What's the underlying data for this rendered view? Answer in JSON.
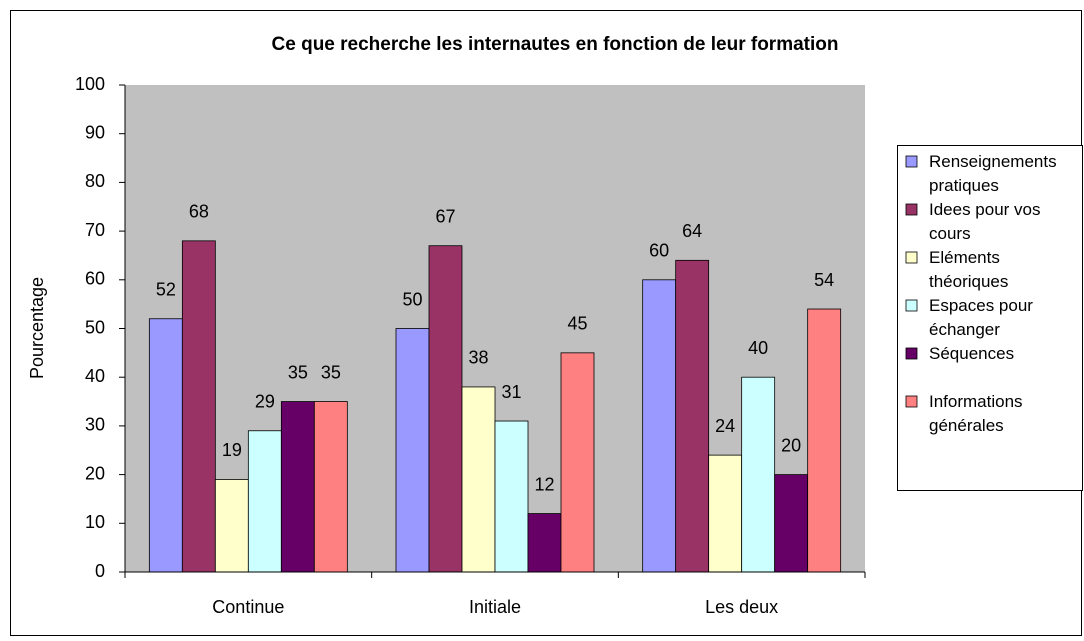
{
  "chart_data": {
    "type": "bar",
    "title": "Ce que recherche les internautes en fonction de leur formation",
    "y_label": "Pourcentage",
    "categories": [
      "Continue",
      "Initiale",
      "Les deux"
    ],
    "series": [
      {
        "name": "Renseignements pratiques",
        "color": "#9999ff",
        "values": [
          52,
          50,
          60
        ]
      },
      {
        "name": "Idees pour vos cours",
        "color": "#993366",
        "values": [
          68,
          67,
          64
        ]
      },
      {
        "name": "Eléments théoriques",
        "color": "#ffffcc",
        "values": [
          19,
          38,
          24
        ]
      },
      {
        "name": "Espaces pour échanger",
        "color": "#ccffff",
        "values": [
          29,
          31,
          40
        ]
      },
      {
        "name": "Séquences",
        "color": "#660066",
        "values": [
          35,
          12,
          20
        ]
      },
      {
        "name": "Informations générales",
        "color": "#ff8080",
        "values": [
          35,
          45,
          54
        ]
      }
    ],
    "ylim": [
      0,
      100
    ],
    "yticks": [
      0,
      10,
      20,
      30,
      40,
      50,
      60,
      70,
      80,
      90,
      100
    ],
    "plot_background": "#c0c0c0",
    "legend": "right"
  }
}
